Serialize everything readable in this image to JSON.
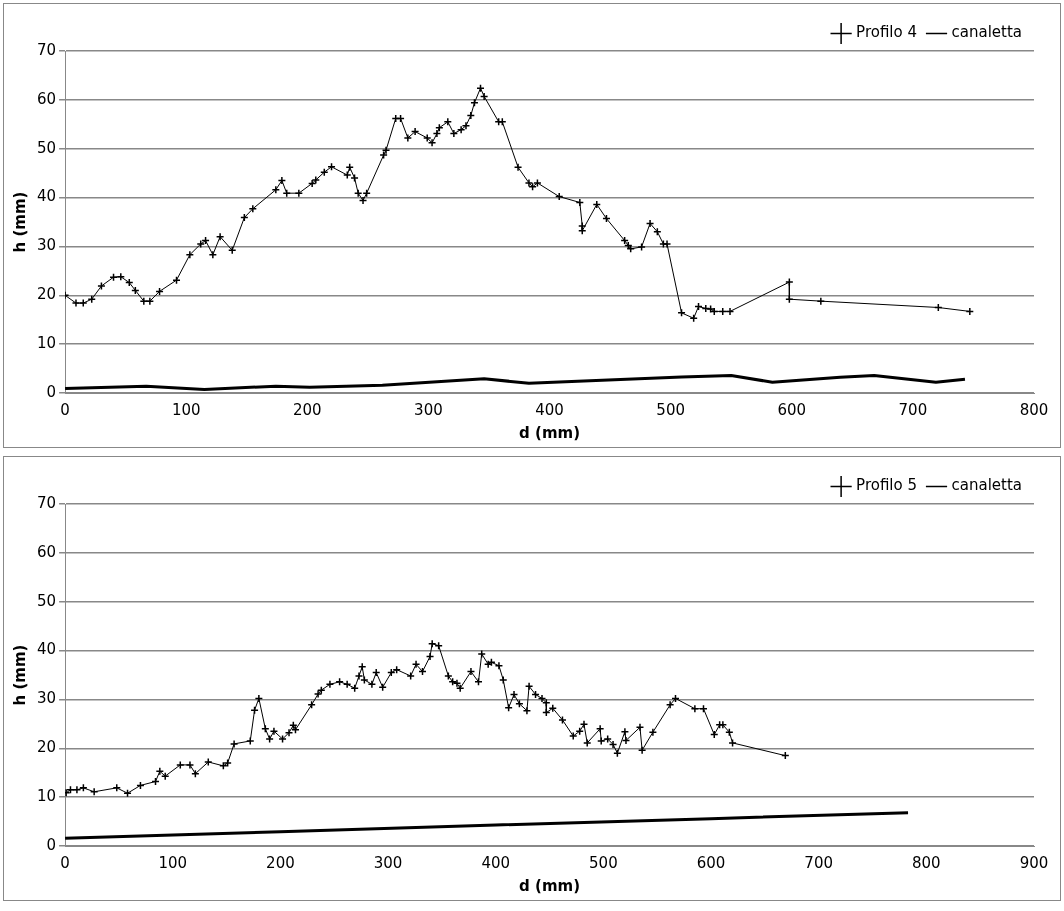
{
  "chart_data": [
    {
      "type": "line",
      "xlabel": "d (mm)",
      "ylabel": "h (mm)",
      "xlim": [
        0,
        800
      ],
      "xticks": [
        0,
        100,
        200,
        300,
        400,
        500,
        600,
        700,
        800
      ],
      "ylim": [
        0,
        70
      ],
      "yticks": [
        0,
        10,
        20,
        30,
        40,
        50,
        60,
        70
      ],
      "grid": "y",
      "legend": "top right",
      "series": [
        {
          "name": "Profilo 4",
          "color": "#000000",
          "marker": "cross",
          "x": [
            0,
            9,
            15,
            22,
            30,
            40,
            46,
            53,
            58,
            65,
            70,
            78,
            92,
            103,
            112,
            116,
            122,
            128,
            138,
            148,
            155,
            174,
            179,
            183,
            193,
            204,
            207,
            214,
            220,
            233,
            235,
            239,
            242,
            246,
            249,
            263,
            265,
            273,
            277,
            283,
            289,
            299,
            303,
            307,
            309,
            316,
            321,
            327,
            331,
            335,
            338,
            343,
            346,
            358,
            361,
            374,
            383,
            386,
            390,
            408,
            425,
            427,
            427,
            439,
            447,
            462,
            465,
            467,
            476,
            483,
            489,
            494,
            497,
            509,
            519,
            523,
            529,
            533,
            536,
            543,
            549,
            598,
            598,
            624,
            721,
            747
          ],
          "values": [
            20,
            18.4,
            18.4,
            19.2,
            21.9,
            23.7,
            23.8,
            22.6,
            21,
            18.8,
            18.8,
            20.8,
            23.1,
            28.3,
            30.5,
            31.2,
            28.3,
            32,
            29.2,
            35.9,
            37.7,
            41.6,
            43.5,
            40.9,
            40.9,
            42.9,
            43.6,
            45.2,
            46.3,
            44.6,
            46.2,
            44,
            40.9,
            39.4,
            40.9,
            48.7,
            49.7,
            56.2,
            56.2,
            52.2,
            53.5,
            52.2,
            51.2,
            53.1,
            54.3,
            55.5,
            53.1,
            53.9,
            54.7,
            56.8,
            59.4,
            62.4,
            60.7,
            55.5,
            55.5,
            46.2,
            43,
            42.2,
            43,
            40.2,
            39,
            34.2,
            33.2,
            38.6,
            35.7,
            31.2,
            30.2,
            29.5,
            29.9,
            34.7,
            33,
            30.5,
            30.5,
            16.4,
            15.3,
            17.7,
            17.3,
            17.2,
            16.7,
            16.7,
            16.7,
            22.7,
            19.2,
            18.8,
            17.5,
            16.7
          ]
        },
        {
          "name": "canaletta",
          "color": "#000000",
          "marker": "none",
          "x": [
            0,
            67,
            115,
            174,
            202,
            262,
            346,
            383,
            509,
            550,
            584,
            640,
            668,
            719,
            743
          ],
          "values": [
            0.9,
            1.4,
            0.7,
            1.4,
            1.2,
            1.6,
            2.9,
            2.0,
            3.3,
            3.6,
            2.2,
            3.2,
            3.6,
            2.2,
            2.8
          ]
        }
      ]
    },
    {
      "type": "line",
      "xlabel": "d (mm)",
      "ylabel": "h (mm)",
      "xlim": [
        0,
        900
      ],
      "xticks": [
        0,
        100,
        200,
        300,
        400,
        500,
        600,
        700,
        800,
        900
      ],
      "ylim": [
        0,
        70
      ],
      "yticks": [
        0,
        10,
        20,
        30,
        40,
        50,
        60,
        70
      ],
      "grid": "y",
      "legend": "top right",
      "series": [
        {
          "name": "Profilo 5",
          "color": "#000000",
          "marker": "cross",
          "x": [
            1,
            5,
            11,
            17,
            27,
            48,
            58,
            70,
            84,
            88,
            93,
            107,
            116,
            121,
            133,
            147,
            151,
            157,
            172,
            176,
            180,
            186,
            190,
            194,
            202,
            208,
            212,
            214,
            229,
            235,
            238,
            246,
            255,
            262,
            269,
            273,
            276,
            278,
            285,
            289,
            295,
            303,
            308,
            321,
            326,
            332,
            339,
            341,
            347,
            356,
            360,
            364,
            367,
            377,
            384,
            387,
            393,
            396,
            403,
            407,
            412,
            417,
            422,
            429,
            431,
            437,
            443,
            447,
            447,
            453,
            462,
            472,
            478,
            482,
            485,
            497,
            498,
            504,
            509,
            513,
            520,
            521,
            534,
            536,
            546,
            562,
            567,
            585,
            593,
            603,
            608,
            611,
            617,
            620,
            669
          ],
          "values": [
            10.9,
            11.5,
            11.5,
            11.9,
            11.1,
            11.9,
            10.8,
            12.4,
            13.2,
            15.3,
            14.3,
            16.6,
            16.6,
            14.8,
            17.2,
            16.4,
            17,
            20.9,
            21.5,
            27.8,
            30.2,
            24,
            21.9,
            23.5,
            21.9,
            23.2,
            24.7,
            23.8,
            28.9,
            31.1,
            31.9,
            33.1,
            33.6,
            33.1,
            32.3,
            34.8,
            36.7,
            34,
            33.1,
            35.5,
            32.5,
            35.5,
            36.1,
            34.8,
            37.2,
            35.7,
            38.8,
            41.4,
            41,
            34.8,
            33.6,
            33.3,
            32.3,
            35.7,
            33.6,
            39.3,
            37.2,
            37.6,
            36.9,
            34,
            28.3,
            31,
            29.1,
            27.7,
            32.7,
            31,
            30.2,
            29.3,
            27.3,
            28.2,
            25.8,
            22.5,
            23.5,
            24.9,
            21.1,
            24,
            21.5,
            21.9,
            20.8,
            19,
            23.4,
            21.6,
            24.3,
            19.6,
            23.3,
            28.9,
            30.2,
            28.1,
            28.1,
            22.8,
            24.8,
            24.8,
            23.3,
            21.1,
            18.5
          ]
        },
        {
          "name": "canaletta",
          "color": "#000000",
          "marker": "none",
          "x": [
            0,
            200,
            400,
            600,
            783
          ],
          "values": [
            1.6,
            2.9,
            4.3,
            5.6,
            6.8
          ]
        }
      ]
    }
  ]
}
